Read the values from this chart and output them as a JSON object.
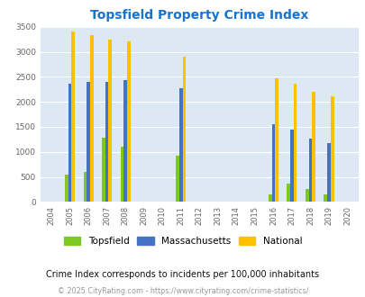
{
  "title": "Topsfield Property Crime Index",
  "title_color": "#1874CD",
  "years": [
    2004,
    2005,
    2006,
    2007,
    2008,
    2009,
    2010,
    2011,
    2012,
    2013,
    2014,
    2015,
    2016,
    2017,
    2018,
    2019,
    2020
  ],
  "topsfield": [
    0,
    540,
    600,
    1290,
    1110,
    0,
    0,
    920,
    0,
    0,
    0,
    0,
    155,
    375,
    265,
    155,
    0
  ],
  "massachusetts": [
    0,
    2370,
    2400,
    2400,
    2440,
    0,
    0,
    2270,
    0,
    0,
    0,
    0,
    1550,
    1450,
    1260,
    1180,
    0
  ],
  "national": [
    0,
    3410,
    3330,
    3250,
    3200,
    0,
    0,
    2900,
    0,
    0,
    0,
    0,
    2470,
    2360,
    2200,
    2110,
    0
  ],
  "topsfield_color": "#7EC820",
  "massachusetts_color": "#4472C4",
  "national_color": "#FFC000",
  "bg_color": "#DCE9F5",
  "ylim": [
    0,
    3500
  ],
  "yticks": [
    0,
    500,
    1000,
    1500,
    2000,
    2500,
    3000,
    3500
  ],
  "bar_width": 0.18,
  "footnote": "Crime Index corresponds to incidents per 100,000 inhabitants",
  "copyright": "© 2025 CityRating.com - https://www.cityrating.com/crime-statistics/",
  "legend_labels": [
    "Topsfield",
    "Massachusetts",
    "National"
  ]
}
